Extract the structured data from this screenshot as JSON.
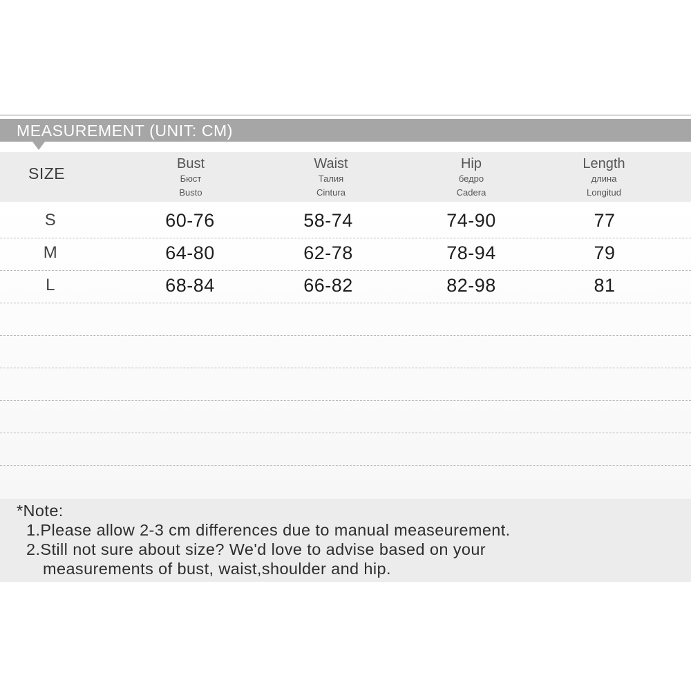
{
  "banner": {
    "title": "MEASUREMENT (UNIT: CM)"
  },
  "table": {
    "size_heading": "SIZE",
    "columns": [
      {
        "en": "Bust",
        "ru": "Бюст",
        "es": "Busto"
      },
      {
        "en": "Waist",
        "ru": "Талия",
        "es": "Cintura"
      },
      {
        "en": "Hip",
        "ru": "бедро",
        "es": "Cadera"
      },
      {
        "en": "Length",
        "ru": "длина",
        "es": "Longitud"
      }
    ],
    "rows": [
      {
        "size": "S",
        "values": [
          "60-76",
          "58-74",
          "74-90",
          "77"
        ]
      },
      {
        "size": "M",
        "values": [
          "64-80",
          "62-78",
          "78-94",
          "79"
        ]
      },
      {
        "size": "L",
        "values": [
          "68-84",
          "66-82",
          "82-98",
          "81"
        ]
      }
    ]
  },
  "note": {
    "title": "*Note:",
    "items": [
      "1.Please allow 2-3 cm differences due to manual measeurement.",
      "2.Still not sure about size? We'd love to advise based on your",
      "measurements of bust, waist,shoulder and hip."
    ]
  }
}
